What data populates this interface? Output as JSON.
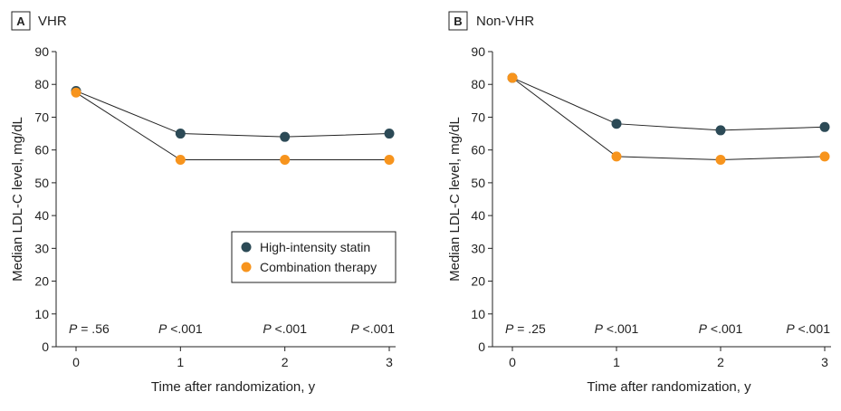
{
  "chart_data": [
    {
      "type": "line",
      "panel_letter": "A",
      "title": "VHR",
      "xlabel": "Time after randomization, y",
      "ylabel": "Median LDL-C level, mg/dL",
      "x": [
        0,
        1,
        2,
        3
      ],
      "x_ticks": [
        "0",
        "1",
        "2",
        "3"
      ],
      "ylim": [
        0,
        90
      ],
      "y_ticks": [
        "0",
        "10",
        "20",
        "30",
        "40",
        "50",
        "60",
        "70",
        "80",
        "90"
      ],
      "series": [
        {
          "name": "High-intensity statin",
          "color": "#2c4a56",
          "values": [
            78,
            65,
            64,
            65
          ]
        },
        {
          "name": "Combination therapy",
          "color": "#f7941d",
          "values": [
            77.5,
            57,
            57,
            57
          ]
        }
      ],
      "p_values": [
        {
          "p": "P",
          "rest": " = .56"
        },
        {
          "p": "P",
          "rest": " <.001"
        },
        {
          "p": "P",
          "rest": " <.001"
        },
        {
          "p": "P",
          "rest": " <.001"
        }
      ],
      "legend": true,
      "legend_position": "lower-right"
    },
    {
      "type": "line",
      "panel_letter": "B",
      "title": "Non-VHR",
      "xlabel": "Time after randomization, y",
      "ylabel": "Median LDL-C level, mg/dL",
      "x": [
        0,
        1,
        2,
        3
      ],
      "x_ticks": [
        "0",
        "1",
        "2",
        "3"
      ],
      "ylim": [
        0,
        90
      ],
      "y_ticks": [
        "0",
        "10",
        "20",
        "30",
        "40",
        "50",
        "60",
        "70",
        "80",
        "90"
      ],
      "series": [
        {
          "name": "High-intensity statin",
          "color": "#2c4a56",
          "values": [
            82,
            68,
            66,
            67
          ]
        },
        {
          "name": "Combination therapy",
          "color": "#f7941d",
          "values": [
            82,
            58,
            57,
            58
          ]
        }
      ],
      "p_values": [
        {
          "p": "P",
          "rest": " = .25"
        },
        {
          "p": "P",
          "rest": " <.001"
        },
        {
          "p": "P",
          "rest": " <.001"
        },
        {
          "p": "P",
          "rest": " <.001"
        }
      ],
      "legend": false
    }
  ]
}
